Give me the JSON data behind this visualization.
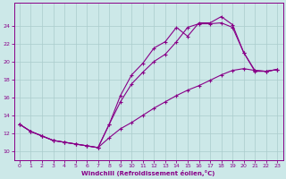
{
  "xlabel": "Windchill (Refroidissement éolien,°C)",
  "xlim": [
    -0.5,
    23.5
  ],
  "ylim": [
    9.0,
    26.5
  ],
  "xticks": [
    0,
    1,
    2,
    3,
    4,
    5,
    6,
    7,
    8,
    9,
    10,
    11,
    12,
    13,
    14,
    15,
    16,
    17,
    18,
    19,
    20,
    21,
    22,
    23
  ],
  "yticks": [
    10,
    12,
    14,
    16,
    18,
    20,
    22,
    24
  ],
  "bg_color": "#cce8e8",
  "grid_color": "#aacccc",
  "line_color": "#880088",
  "curves": [
    {
      "x": [
        0,
        1,
        2,
        3,
        4,
        5,
        6,
        7,
        8,
        9,
        10,
        11,
        12,
        13,
        14,
        15,
        16,
        17,
        18,
        19,
        20,
        21,
        22,
        23
      ],
      "y": [
        13.0,
        12.2,
        11.7,
        11.2,
        11.0,
        10.8,
        10.6,
        10.4,
        13.0,
        16.2,
        18.5,
        19.8,
        21.5,
        22.2,
        23.8,
        22.8,
        24.3,
        24.3,
        25.0,
        24.1,
        21.0,
        19.0,
        18.9,
        19.1
      ]
    },
    {
      "x": [
        0,
        1,
        2,
        3,
        4,
        5,
        6,
        7,
        8,
        9,
        10,
        11,
        12,
        13,
        14,
        15,
        16,
        17,
        18,
        19,
        20,
        21,
        22,
        23
      ],
      "y": [
        13.0,
        12.2,
        11.7,
        11.2,
        11.0,
        10.8,
        10.6,
        10.4,
        13.0,
        15.5,
        17.5,
        18.8,
        20.0,
        20.8,
        22.2,
        23.8,
        24.2,
        24.2,
        24.3,
        23.8,
        21.0,
        18.9,
        18.9,
        19.1
      ]
    },
    {
      "x": [
        0,
        1,
        2,
        3,
        4,
        5,
        6,
        7,
        8,
        9,
        10,
        11,
        12,
        13,
        14,
        15,
        16,
        17,
        18,
        19,
        20,
        21,
        22,
        23
      ],
      "y": [
        13.0,
        12.2,
        11.7,
        11.2,
        11.0,
        10.8,
        10.6,
        10.4,
        11.5,
        12.5,
        13.2,
        14.0,
        14.8,
        15.5,
        16.2,
        16.8,
        17.3,
        17.9,
        18.5,
        19.0,
        19.2,
        19.0,
        18.9,
        19.1
      ]
    }
  ]
}
